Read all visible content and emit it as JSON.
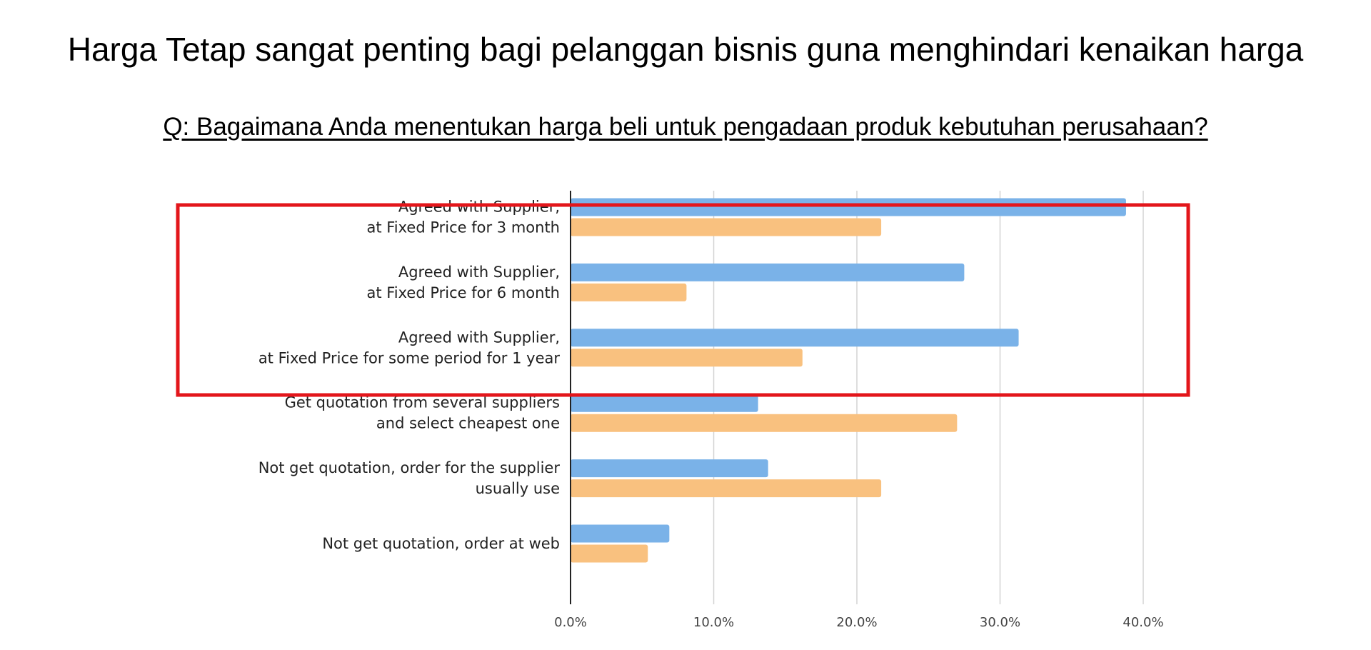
{
  "page": {
    "title": "Harga Tetap sangat penting bagi pelanggan bisnis guna menghindari kenaikan harga",
    "question": "Q: Bagaimana Anda menentukan harga beli untuk pengadaan produk kebutuhan perusahaan?"
  },
  "chart_data": {
    "type": "bar",
    "orientation": "horizontal",
    "title": "",
    "xlabel": "",
    "ylabel": "",
    "xlim": [
      0,
      45
    ],
    "grid": true,
    "legend": "none",
    "categories": [
      [
        "Agreed with Supplier,",
        "at Fixed Price for 3 month"
      ],
      [
        "Agreed with Supplier,",
        "at Fixed Price for 6 month"
      ],
      [
        "Agreed with Supplier,",
        "at Fixed Price for some period for 1 year"
      ],
      [
        "Get quotation from several suppliers",
        "and select cheapest one"
      ],
      [
        "Not get quotation, order for the supplier",
        "usually use"
      ],
      [
        "Not get quotation, order at web"
      ]
    ],
    "series": [
      {
        "color": "#7ab2e8",
        "values": [
          38.8,
          27.5,
          31.3,
          13.1,
          13.8,
          6.9
        ]
      },
      {
        "color": "#f9c17f",
        "values": [
          21.7,
          8.1,
          16.2,
          27.0,
          21.7,
          5.4
        ]
      }
    ],
    "ticks": [
      0,
      10,
      20,
      30,
      40
    ],
    "tick_labels": [
      "0.0%",
      "10.0%",
      "20.0%",
      "30.0%",
      "40.0%"
    ],
    "highlight": {
      "color": "#e3161b",
      "categories": [
        0,
        1,
        2
      ]
    }
  }
}
